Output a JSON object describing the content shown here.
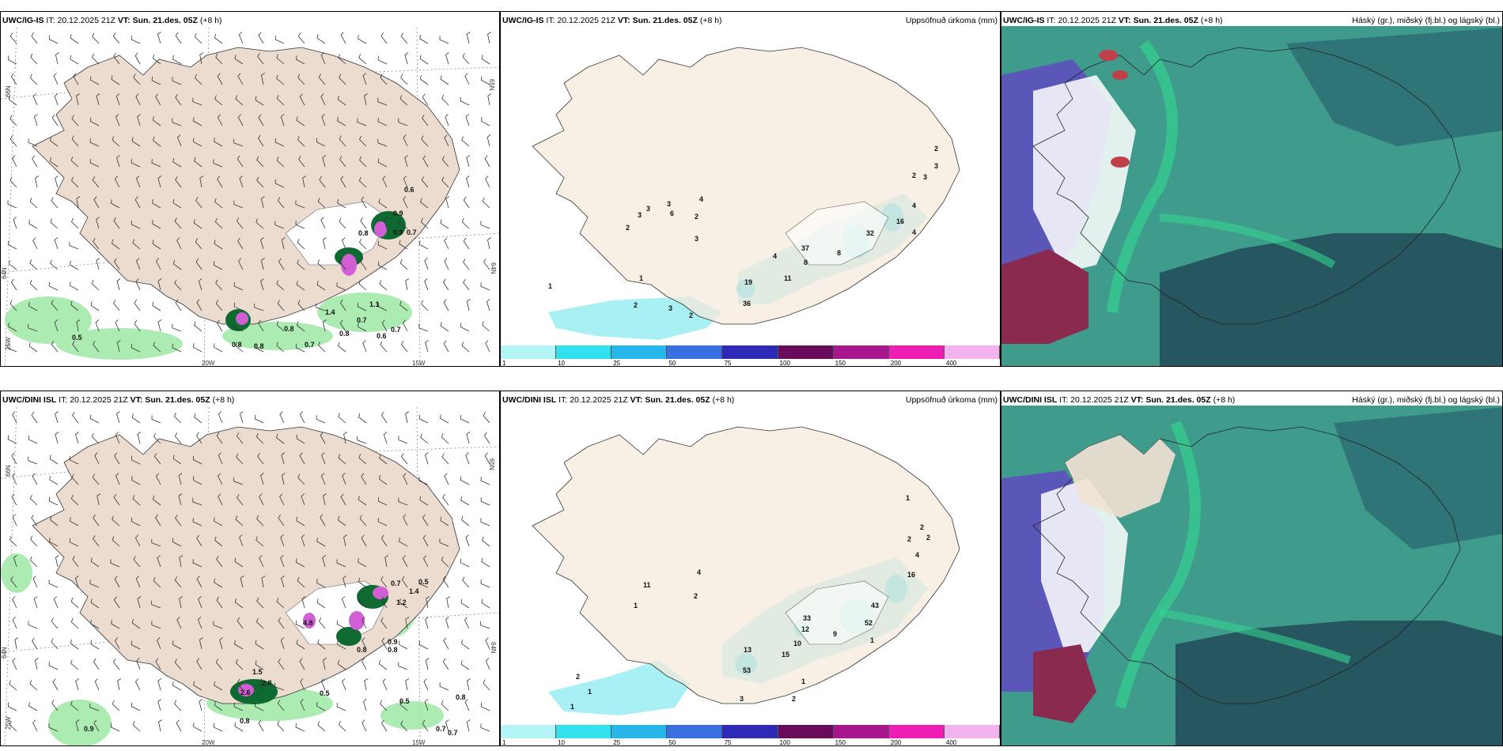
{
  "colors": {
    "land": "#f6e9dc",
    "landWind": "#ecdcd0",
    "coast": "#333333",
    "sea": "#ffffff",
    "cloudTeal": "#3f9b8c",
    "cloudDark": "#26565f",
    "cloudPurple": "#5a57b8",
    "cloudMaroon": "#8b2a4f",
    "cloudGreen": "#35d28f"
  },
  "panels": {
    "p1": {
      "model": "UWC/IG-IS",
      "it_label": "IT:",
      "it_value": "20.12.2025 21Z",
      "vt_label": "VT:",
      "vt_value": "Sun. 21.des. 05Z",
      "lead": "(+8 h)",
      "lat_a": "66N",
      "lat_b": "64N",
      "lat_c": "25W",
      "lon_a": "20W",
      "lon_b": "15W",
      "lat_r1": "65N",
      "lat_r2": "64N",
      "labels": [
        "0.6",
        "0.9",
        "0.9",
        "0.7",
        "1.1",
        "1.4",
        "0.7",
        "0.7",
        "0.8",
        "0.6",
        "0.8",
        "0.8",
        "0.8",
        "0.7",
        "0.5",
        "0.8"
      ]
    },
    "p2": {
      "model": "UWC/IG-IS",
      "it_label": "IT:",
      "it_value": "20.12.2025 21Z",
      "vt_label": "VT:",
      "vt_value": "Sun. 21.des. 05Z",
      "lead": "(+8 h)",
      "right_title": "Uppsöfnuð úrkoma (mm)",
      "labels": [
        "3",
        "3",
        "2",
        "3",
        "6",
        "4",
        "2",
        "3",
        "2",
        "4",
        "37",
        "8",
        "11",
        "19",
        "36",
        "1",
        "1",
        "3",
        "2",
        "2",
        "3",
        "3",
        "2",
        "4",
        "4",
        "16",
        "32",
        "8"
      ]
    },
    "p3": {
      "model": "UWC/IG-IS",
      "it_label": "IT:",
      "it_value": "20.12.2025 21Z",
      "vt_label": "VT:",
      "vt_value": "Sun. 21.des. 05Z",
      "lead": "(+8 h)",
      "right_title": "Háský (gr.), miðský (fj.bl.) og lágský (bl.)"
    },
    "p4": {
      "model": "UWC/DINI ISL",
      "it_label": "IT:",
      "it_value": "20.12.2025 21Z",
      "vt_label": "VT:",
      "vt_value": "Sun. 21.des. 05Z",
      "lead": "(+8 h)",
      "lat_a": "66N",
      "lat_b": "64N",
      "lat_c": "25W",
      "lon_a": "20W",
      "lon_b": "15W",
      "lat_r1": "65N",
      "lat_r2": "64N",
      "labels": [
        "0.7",
        "1.4",
        "0.5",
        "1.2",
        "4.8",
        "0.8",
        "0.9",
        "0.8",
        "1.5",
        "2.8",
        "2.6",
        "0.5",
        "0.5",
        "0.8",
        "0.9",
        "0.7",
        "0.7",
        "0.8"
      ]
    },
    "p5": {
      "model": "UWC/DINI ISL",
      "it_label": "IT:",
      "it_value": "20.12.2025 21Z",
      "vt_label": "VT:",
      "vt_value": "Sun. 21.des. 05Z",
      "lead": "(+8 h)",
      "right_title": "Uppsöfnuð úrkoma (mm)",
      "labels": [
        "1",
        "2",
        "2",
        "2",
        "4",
        "16",
        "11",
        "4",
        "2",
        "1",
        "33",
        "12",
        "10",
        "15",
        "13",
        "53",
        "2",
        "1",
        "1",
        "3",
        "1",
        "2",
        "1",
        "43",
        "52",
        "9"
      ]
    },
    "p6": {
      "model": "UWC/DINI ISL",
      "it_label": "IT:",
      "it_value": "20.12.2025 21Z",
      "vt_label": "VT:",
      "vt_value": "Sun. 21.des. 05Z",
      "lead": "(+8 h)",
      "right_title": "Háský (gr.), miðský (fj.bl.) og lágský (bl.)"
    }
  },
  "colorbar": {
    "colors": [
      "#b3f4f6",
      "#33e0ee",
      "#26b6ea",
      "#3a6fe2",
      "#2d2ab8",
      "#6a0a5a",
      "#a8168d",
      "#ee1eb5",
      "#f2b2ee"
    ],
    "ticks": [
      "1",
      "10",
      "25",
      "50",
      "75",
      "100",
      "150",
      "200",
      "400"
    ]
  }
}
